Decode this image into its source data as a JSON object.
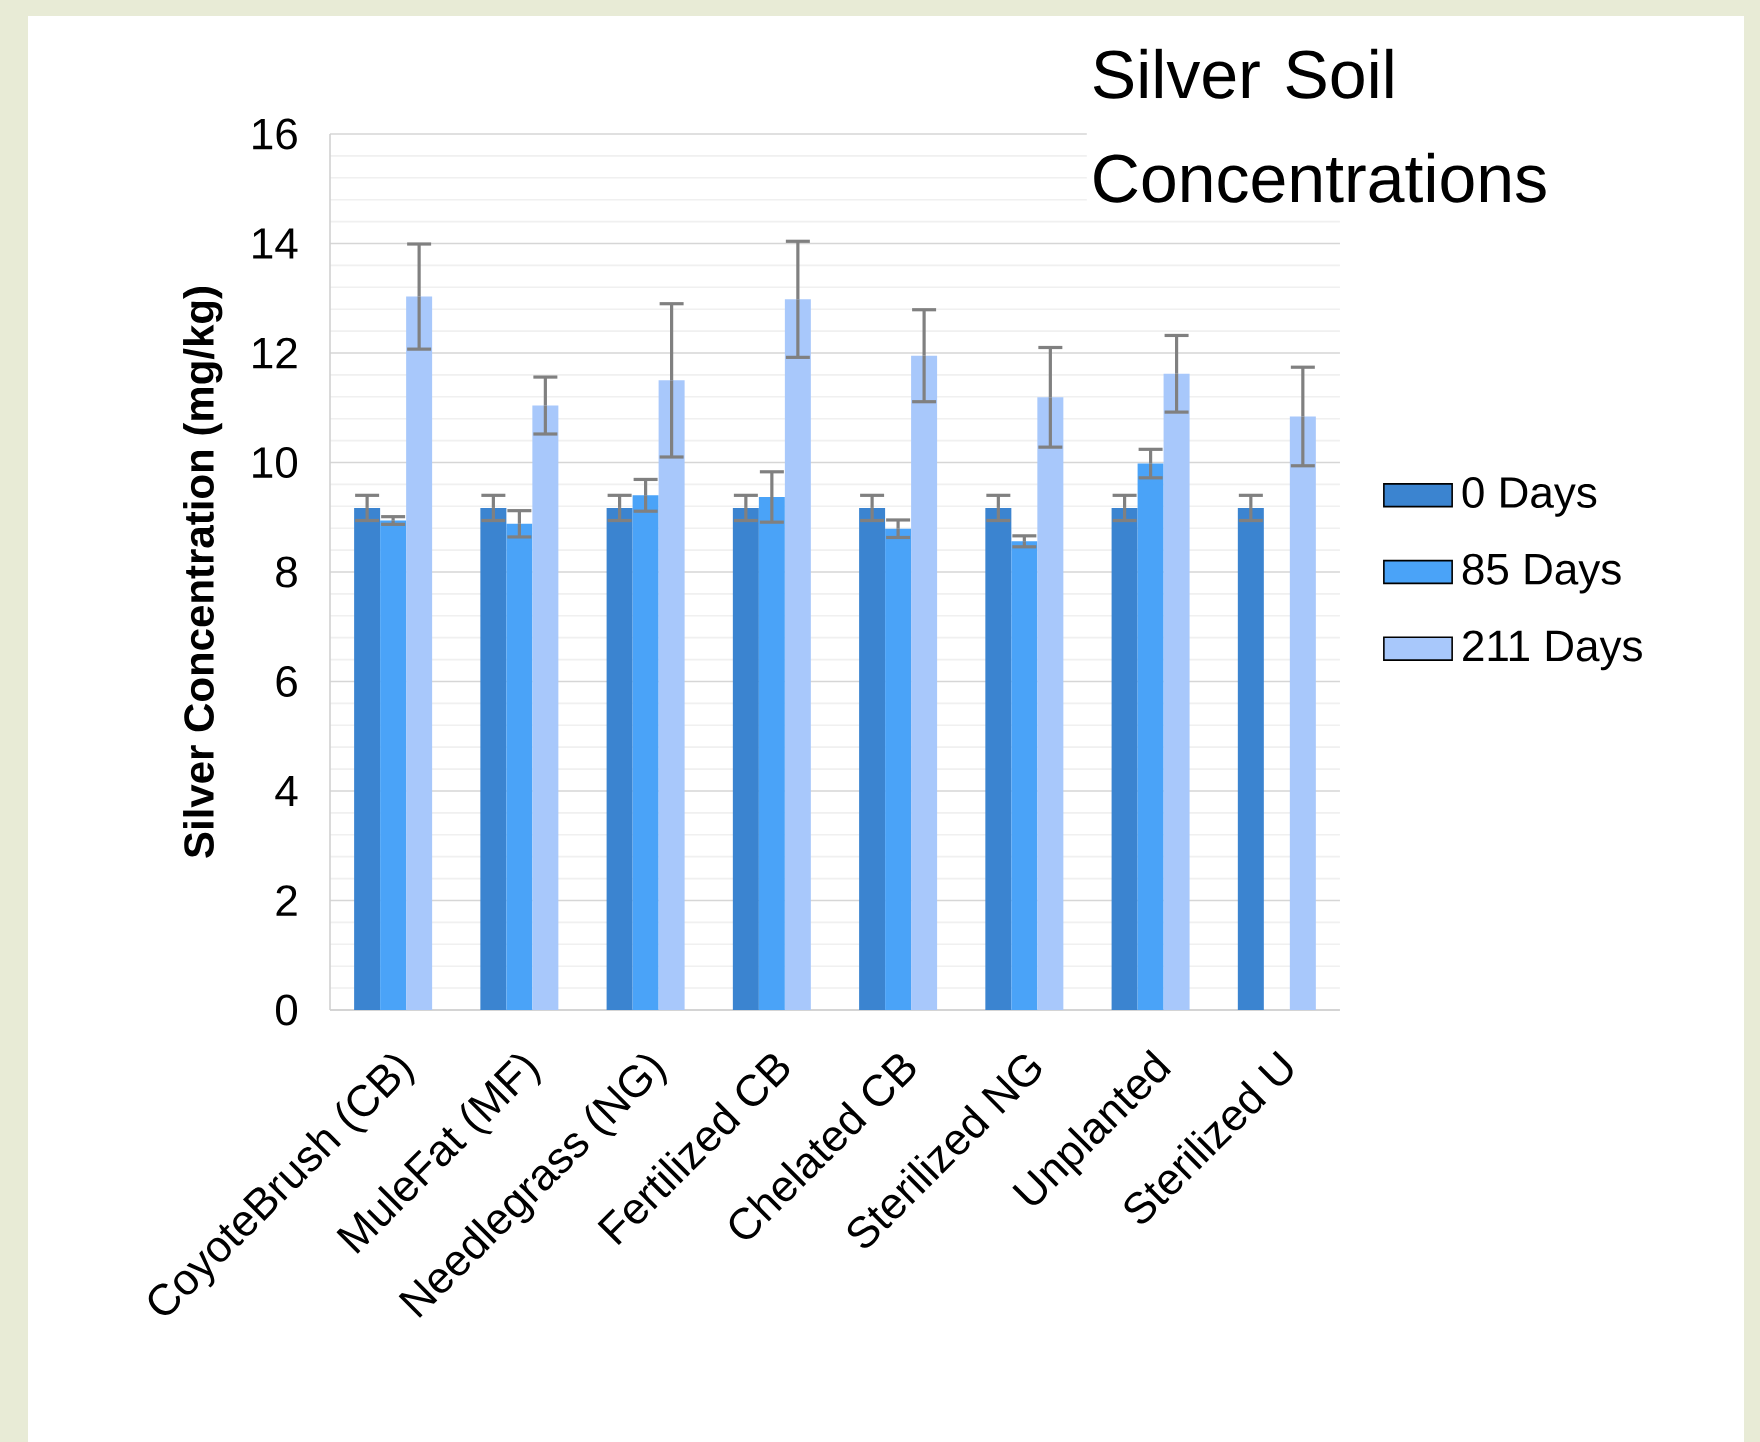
{
  "chart_data": {
    "type": "bar",
    "title": "Silver Soil Concentrations",
    "ylabel": "Silver Concentration (mg/kg)",
    "categories": [
      "CoyoteBrush (CB)",
      "MuleFat (MF)",
      "Needlegrass (NG)",
      "Fertilized CB",
      "Chelated CB",
      "Sterilized NG",
      "Unplanted",
      "Sterilized U"
    ],
    "series": [
      {
        "name": "0 Days",
        "color": "#3b84d0",
        "values": [
          9.17,
          9.17,
          9.17,
          9.17,
          9.17,
          9.17,
          9.17,
          9.17
        ],
        "errors": [
          0.23,
          0.23,
          0.23,
          0.23,
          0.23,
          0.23,
          0.23,
          0.23
        ]
      },
      {
        "name": "85 Days",
        "color": "#4aa3f8",
        "values": [
          8.94,
          8.88,
          9.4,
          9.37,
          8.79,
          8.56,
          9.98,
          null
        ],
        "errors": [
          0.07,
          0.24,
          0.29,
          0.46,
          0.16,
          0.1,
          0.26,
          null
        ]
      },
      {
        "name": "211 Days",
        "color": "#a8c8fb",
        "values": [
          13.03,
          11.04,
          11.5,
          12.98,
          11.95,
          11.19,
          11.62,
          10.84
        ],
        "errors": [
          0.96,
          0.52,
          1.4,
          1.06,
          0.84,
          0.91,
          0.7,
          0.9
        ]
      }
    ],
    "ylim": [
      0,
      16
    ],
    "yticks": [
      0,
      2,
      4,
      6,
      8,
      10,
      12,
      14,
      16
    ],
    "grid": "y",
    "legend": "right"
  }
}
